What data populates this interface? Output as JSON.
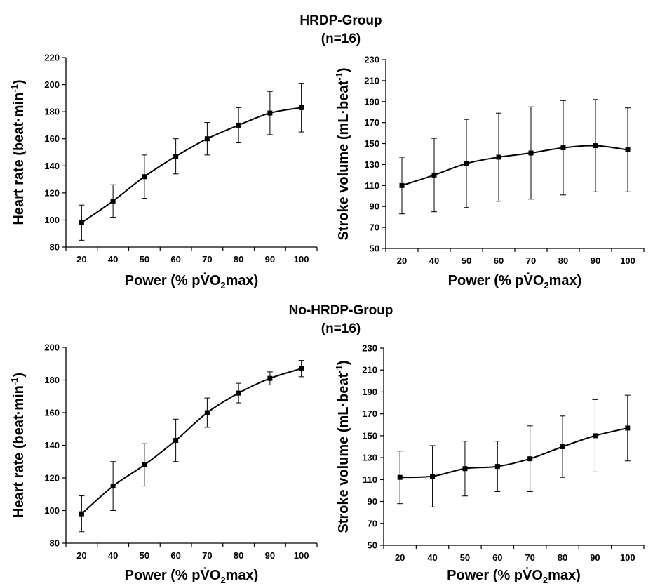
{
  "groups": [
    {
      "title_line1": "HRDP-Group",
      "title_line2": "(n=16)"
    },
    {
      "title_line1": "No-HRDP-Group",
      "title_line2": "(n=16)"
    }
  ],
  "axis_text": {
    "xlabel": {
      "pre": "Power (% p",
      "v": "V",
      "o": "O",
      "sub": "2",
      "post": "max)"
    },
    "hr_ylabel": {
      "pre": "Heart rate (beat·min",
      "sup": "-1",
      "post": ")"
    },
    "sv_ylabel": {
      "pre": "Stroke volume (mL·beat",
      "sup": "-1",
      "post": ")"
    }
  },
  "chart_data": [
    {
      "id": "hrdp-heart-rate",
      "type": "line",
      "x": [
        "20",
        "40",
        "50",
        "60",
        "70",
        "80",
        "90",
        "100"
      ],
      "values": [
        98,
        114,
        132,
        147,
        160,
        170,
        179,
        183
      ],
      "err": [
        13,
        12,
        16,
        13,
        12,
        13,
        16,
        18
      ],
      "ylim": [
        80,
        220
      ],
      "yticks": [
        80,
        100,
        120,
        140,
        160,
        180,
        200,
        220
      ],
      "xlabel": "Power (% pV̇O2max)",
      "ylabel": "Heart rate (beat·min-1)",
      "grid": false,
      "legend": "none"
    },
    {
      "id": "hrdp-stroke-volume",
      "type": "line",
      "x": [
        "20",
        "40",
        "50",
        "60",
        "70",
        "80",
        "90",
        "100"
      ],
      "values": [
        110,
        120,
        131,
        137,
        141,
        146,
        148,
        144
      ],
      "err": [
        27,
        35,
        42,
        42,
        44,
        45,
        44,
        40
      ],
      "ylim": [
        50,
        230
      ],
      "yticks": [
        50,
        70,
        90,
        110,
        130,
        150,
        170,
        190,
        210,
        230
      ],
      "xlabel": "Power (% pV̇O2max)",
      "ylabel": "Stroke volume (mL·beat-1)",
      "grid": false,
      "legend": "none"
    },
    {
      "id": "no-hrdp-heart-rate",
      "type": "line",
      "x": [
        "20",
        "40",
        "50",
        "60",
        "70",
        "80",
        "90",
        "100"
      ],
      "values": [
        98,
        115,
        128,
        143,
        160,
        172,
        181,
        187
      ],
      "err": [
        11,
        15,
        13,
        13,
        9,
        6,
        4,
        5
      ],
      "ylim": [
        80,
        200
      ],
      "yticks": [
        80,
        100,
        120,
        140,
        160,
        180,
        200
      ],
      "xlabel": "Power (% pV̇O2max)",
      "ylabel": "Heart rate (beat·min-1)",
      "grid": false,
      "legend": "none"
    },
    {
      "id": "no-hrdp-stroke-volume",
      "type": "line",
      "x": [
        "20",
        "40",
        "50",
        "60",
        "70",
        "80",
        "90",
        "100"
      ],
      "values": [
        112,
        113,
        120,
        122,
        129,
        140,
        150,
        157
      ],
      "err": [
        24,
        28,
        25,
        23,
        30,
        28,
        33,
        30
      ],
      "ylim": [
        50,
        230
      ],
      "yticks": [
        50,
        70,
        90,
        110,
        130,
        150,
        170,
        190,
        210,
        230
      ],
      "xlabel": "Power (% pV̇O2max)",
      "ylabel": "Stroke volume (mL·beat-1)",
      "grid": false,
      "legend": "none"
    }
  ]
}
